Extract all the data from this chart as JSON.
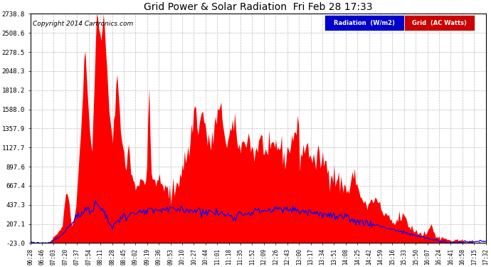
{
  "title": "Grid Power & Solar Radiation  Fri Feb 28 17:33",
  "copyright": "Copyright 2014 Cartronics.com",
  "background_color": "#ffffff",
  "plot_bg_color": "#ffffff",
  "grid_color": "#aaaaaa",
  "yticks": [
    -23.0,
    207.1,
    437.3,
    667.4,
    897.6,
    1127.7,
    1357.9,
    1588.0,
    1818.2,
    2048.3,
    2278.5,
    2508.6,
    2738.8
  ],
  "ymin": -23.0,
  "ymax": 2738.8,
  "radiation_color": "#0000ff",
  "grid_power_color": "#ff0000",
  "grid_power_fill": "#ff0000",
  "legend_radiation_bg": "#0000cc",
  "legend_grid_bg": "#cc0000",
  "legend_radiation_label": "Radiation  (W/m2)",
  "legend_grid_label": "Grid  (AC Watts)",
  "time_labels": [
    "06:28",
    "06:46",
    "07:03",
    "07:20",
    "07:37",
    "07:54",
    "08:11",
    "08:28",
    "08:45",
    "09:02",
    "09:19",
    "09:36",
    "09:53",
    "10:10",
    "10:27",
    "10:44",
    "11:01",
    "11:18",
    "11:35",
    "11:52",
    "12:09",
    "12:26",
    "12:43",
    "13:00",
    "13:17",
    "13:34",
    "13:51",
    "14:08",
    "14:25",
    "14:42",
    "14:59",
    "15:16",
    "15:33",
    "15:50",
    "16:07",
    "16:24",
    "16:41",
    "16:58",
    "17:15",
    "17:32"
  ]
}
